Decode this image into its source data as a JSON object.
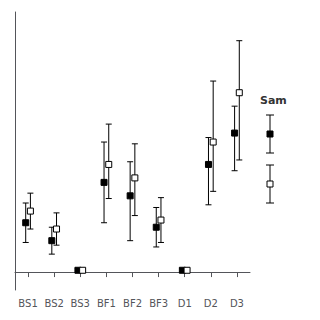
{
  "chart_data": {
    "type": "errorbar",
    "categories": [
      "BS1",
      "BS2",
      "BS3",
      "BF1",
      "BF2",
      "BF3",
      "D1",
      "D2",
      "D3"
    ],
    "series": [
      {
        "color": "#000000",
        "marker": "square",
        "values": [
          55,
          35,
          2,
          100,
          85,
          50,
          2,
          120,
          155
        ],
        "err_low": [
          22,
          15,
          2,
          45,
          50,
          22,
          2,
          45,
          42
        ],
        "err_high": [
          22,
          15,
          2,
          45,
          38,
          22,
          2,
          30,
          30
        ]
      },
      {
        "color": "#000000",
        "marker": "square_open",
        "values": [
          68,
          48,
          2,
          120,
          105,
          58,
          2,
          145,
          200
        ],
        "err_low": [
          20,
          18,
          2,
          38,
          42,
          25,
          2,
          55,
          75
        ],
        "err_high": [
          20,
          18,
          2,
          45,
          38,
          25,
          2,
          68,
          58
        ]
      }
    ],
    "ylim": [
      -20,
      290
    ],
    "annotations": [
      "Sam"
    ],
    "legend": "right",
    "grid": false,
    "tick_labels": "x"
  }
}
